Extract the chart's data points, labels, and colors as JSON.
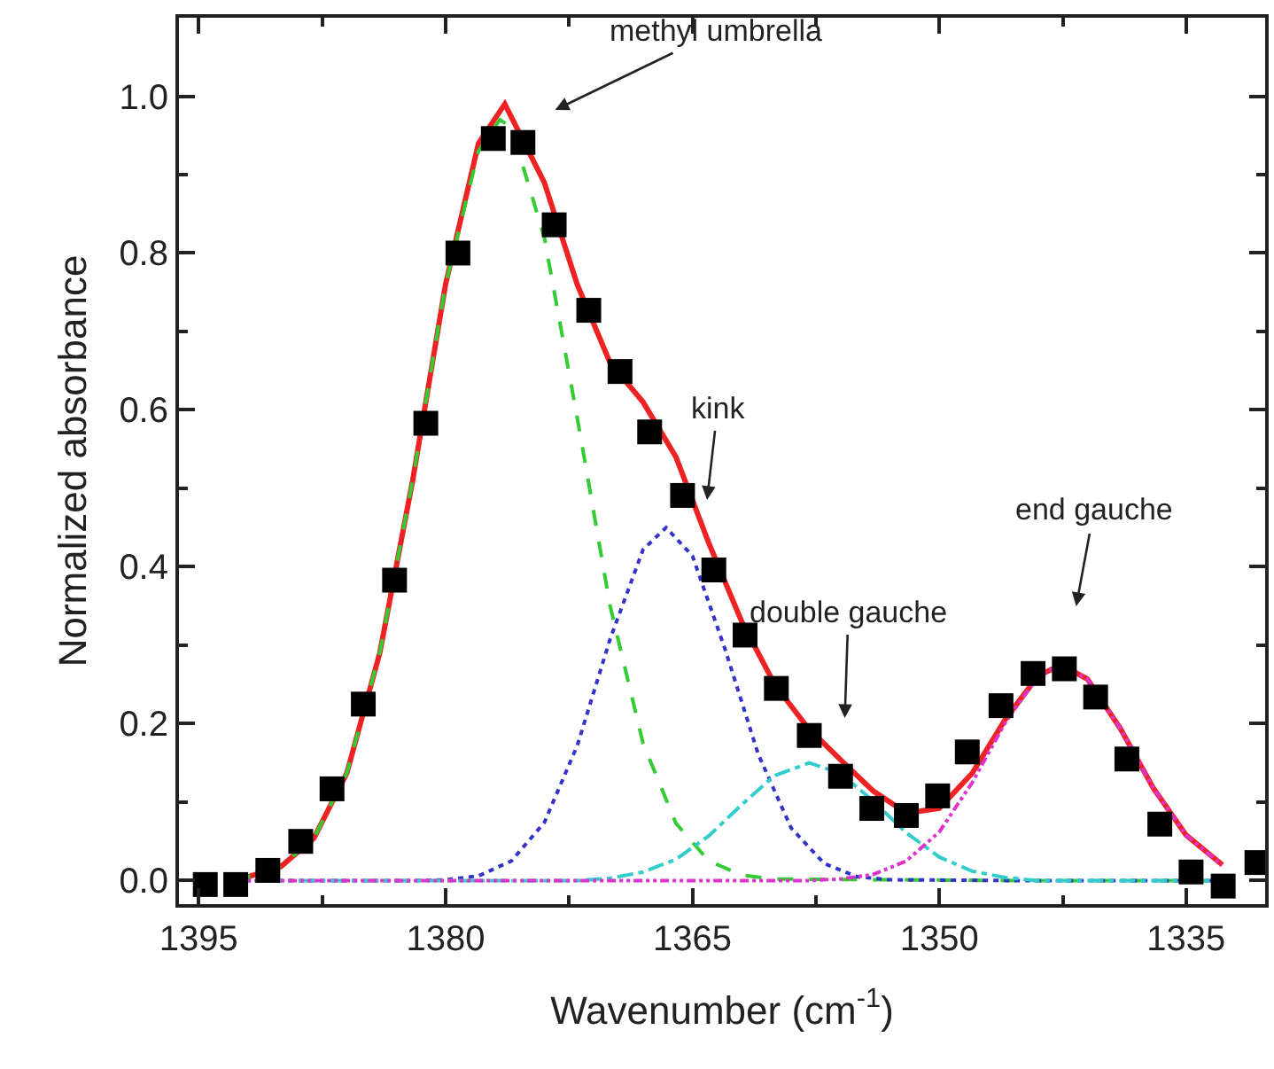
{
  "chart_data": {
    "type": "scatter",
    "xlabel": "Wavenumber (cm$^{-1}$)",
    "ylabel": "Normalized absorbance",
    "xlim": [
      1396.2,
      1330.2
    ],
    "xticks": [
      1395,
      {
        "value": 1387.5,
        "label": null
      },
      1380,
      {
        "value": 1372.5,
        "label": null
      },
      1365,
      {
        "value": 1357.5,
        "label": null
      },
      1350,
      {
        "value": 1342.5,
        "label": null
      },
      1335
    ],
    "ylim": [
      -0.03,
      1.1
    ],
    "yticks": [
      {
        "value": 0,
        "label": "0.0"
      },
      {
        "value": 0.1,
        "label": null
      },
      {
        "value": 0.2,
        "label": "0.2"
      },
      {
        "value": 0.3,
        "label": null
      },
      {
        "value": 0.4,
        "label": "0.4"
      },
      {
        "value": 0.5,
        "label": null
      },
      {
        "value": 0.6,
        "label": "0.6"
      },
      {
        "value": 0.7,
        "label": null
      },
      {
        "value": 0.8,
        "label": "0.8"
      },
      {
        "value": 0.9,
        "label": null
      },
      {
        "value": 1.0,
        "label": "1.0"
      }
    ],
    "series": [
      {
        "type": "line",
        "color": "#33cc33",
        "line_style": "dashed",
        "marker": "none",
        "x": [
          1392.8,
          1392,
          1390,
          1388,
          1386,
          1384,
          1382,
          1380,
          1378,
          1376.7,
          1376,
          1374,
          1372,
          1370,
          1368,
          1366,
          1364,
          1362,
          1360,
          1345,
          1332.8
        ],
        "values": [
          0,
          0.005,
          0.018,
          0.054,
          0.137,
          0.29,
          0.51,
          0.76,
          0.93,
          0.97,
          0.96,
          0.82,
          0.59,
          0.35,
          0.175,
          0.073,
          0.025,
          0.007,
          0.002,
          0,
          0
        ]
      },
      {
        "type": "line",
        "color": "#3333cc",
        "line_style": "dotted",
        "marker": "none",
        "x": [
          1392.8,
          1382,
          1380,
          1378,
          1376,
          1374,
          1372,
          1370,
          1368,
          1366.6,
          1365,
          1363,
          1361,
          1359,
          1357,
          1355,
          1353,
          1345,
          1332.8
        ],
        "values": [
          0,
          0,
          0.001,
          0.006,
          0.025,
          0.074,
          0.172,
          0.308,
          0.422,
          0.45,
          0.414,
          0.294,
          0.161,
          0.067,
          0.022,
          0.005,
          0.001,
          0,
          0
        ]
      },
      {
        "type": "line",
        "color": "#33cccc",
        "line_style": "dashdot",
        "marker": "none",
        "x": [
          1392.8,
          1372,
          1370,
          1368,
          1366,
          1364,
          1362,
          1360,
          1357.9,
          1356,
          1354,
          1352,
          1350,
          1348,
          1346,
          1344,
          1332.8
        ],
        "values": [
          0,
          0,
          0.003,
          0.011,
          0.027,
          0.057,
          0.097,
          0.134,
          0.15,
          0.137,
          0.101,
          0.061,
          0.03,
          0.012,
          0.004,
          0,
          0
        ]
      },
      {
        "type": "line",
        "color": "#dd33cc",
        "line_style": "dashdotdot",
        "marker": "none",
        "x": [
          1392.8,
          1358,
          1356,
          1354,
          1352,
          1350,
          1348,
          1346,
          1344,
          1342.6,
          1341,
          1339,
          1337,
          1335,
          1333,
          1332.8
        ],
        "values": [
          0,
          0,
          0.002,
          0.008,
          0.025,
          0.062,
          0.125,
          0.201,
          0.261,
          0.275,
          0.257,
          0.194,
          0.118,
          0.058,
          0.023,
          0.02
        ]
      },
      {
        "type": "line",
        "color": "#ee2222",
        "line_style": "solid",
        "marker": "none",
        "x": [
          1392.8,
          1392,
          1390,
          1388,
          1386,
          1384,
          1382,
          1380,
          1378,
          1376.4,
          1374,
          1372,
          1370,
          1368,
          1366,
          1364,
          1362,
          1360,
          1358,
          1356,
          1354,
          1352,
          1350,
          1348,
          1346,
          1344,
          1342.6,
          1341,
          1339,
          1337,
          1335,
          1332.8
        ],
        "values": [
          0,
          0.005,
          0.018,
          0.054,
          0.137,
          0.29,
          0.51,
          0.76,
          0.94,
          0.99,
          0.89,
          0.76,
          0.66,
          0.61,
          0.54,
          0.43,
          0.33,
          0.25,
          0.195,
          0.154,
          0.114,
          0.086,
          0.092,
          0.137,
          0.205,
          0.261,
          0.275,
          0.257,
          0.194,
          0.118,
          0.058,
          0.02
        ]
      },
      {
        "color": "#000000",
        "marker": "square",
        "x": [
          1394.6,
          1392.75,
          1390.8,
          1388.8,
          1386.9,
          1385.0,
          1383.1,
          1381.2,
          1379.25,
          1377.1,
          1375.3,
          1373.4,
          1371.3,
          1369.4,
          1367.6,
          1365.6,
          1363.7,
          1361.8,
          1359.9,
          1357.9,
          1356.0,
          1354.1,
          1352.0,
          1350.1,
          1348.3,
          1346.25,
          1344.3,
          1342.4,
          1340.5,
          1338.6,
          1336.6,
          1334.7,
          1332.75,
          1330.7
        ],
        "values": [
          -0.005,
          -0.005,
          0.013,
          0.05,
          0.117,
          0.225,
          0.383,
          0.583,
          0.8,
          0.946,
          0.941,
          0.836,
          0.727,
          0.649,
          0.572,
          0.491,
          0.396,
          0.313,
          0.245,
          0.185,
          0.133,
          0.092,
          0.083,
          0.108,
          0.164,
          0.223,
          0.264,
          0.27,
          0.234,
          0.155,
          0.072,
          0.011,
          -0.007,
          0.023
        ]
      }
    ],
    "annotations": [
      "methyl umbrella",
      "kink",
      "double gauche",
      "end gauche"
    ]
  }
}
